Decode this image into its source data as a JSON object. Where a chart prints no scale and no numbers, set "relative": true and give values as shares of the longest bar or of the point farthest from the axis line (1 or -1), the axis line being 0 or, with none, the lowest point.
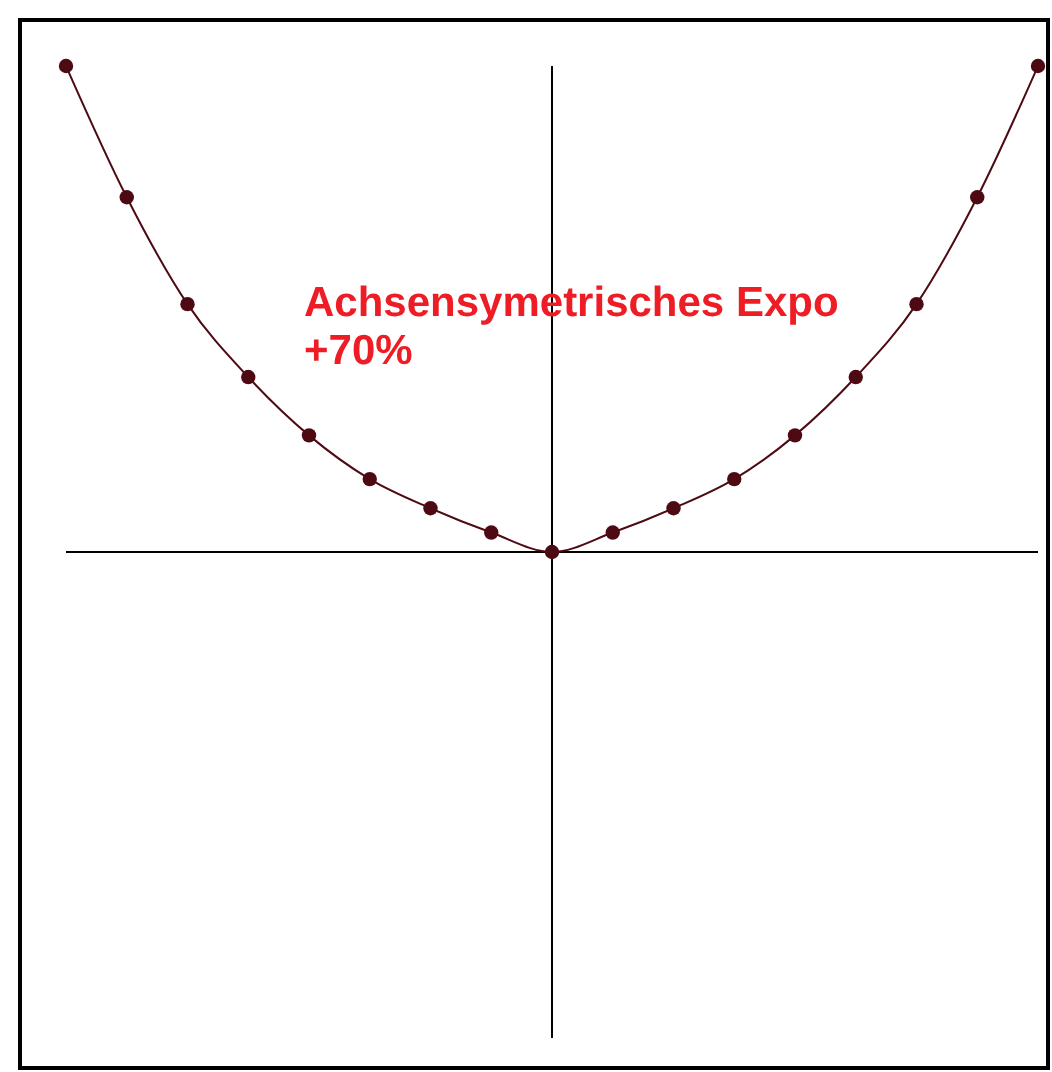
{
  "chart_data": {
    "type": "line",
    "title": "Achsensymetrisches Expo +70%",
    "categories": [
      null,
      null,
      null,
      null,
      null,
      null,
      null,
      null,
      null,
      null,
      null,
      null,
      null,
      null,
      null,
      null,
      null
    ],
    "relative": true,
    "marker": "circle",
    "line_style": "solid",
    "series": [
      {
        "color": "#4d0a12",
        "values": [
          1,
          0.73,
          0.51,
          0.36,
          0.24,
          0.15,
          0.09,
          0.04,
          0,
          0.04,
          0.09,
          0.15,
          0.24,
          0.36,
          0.51,
          0.73,
          1
        ]
      }
    ]
  }
}
